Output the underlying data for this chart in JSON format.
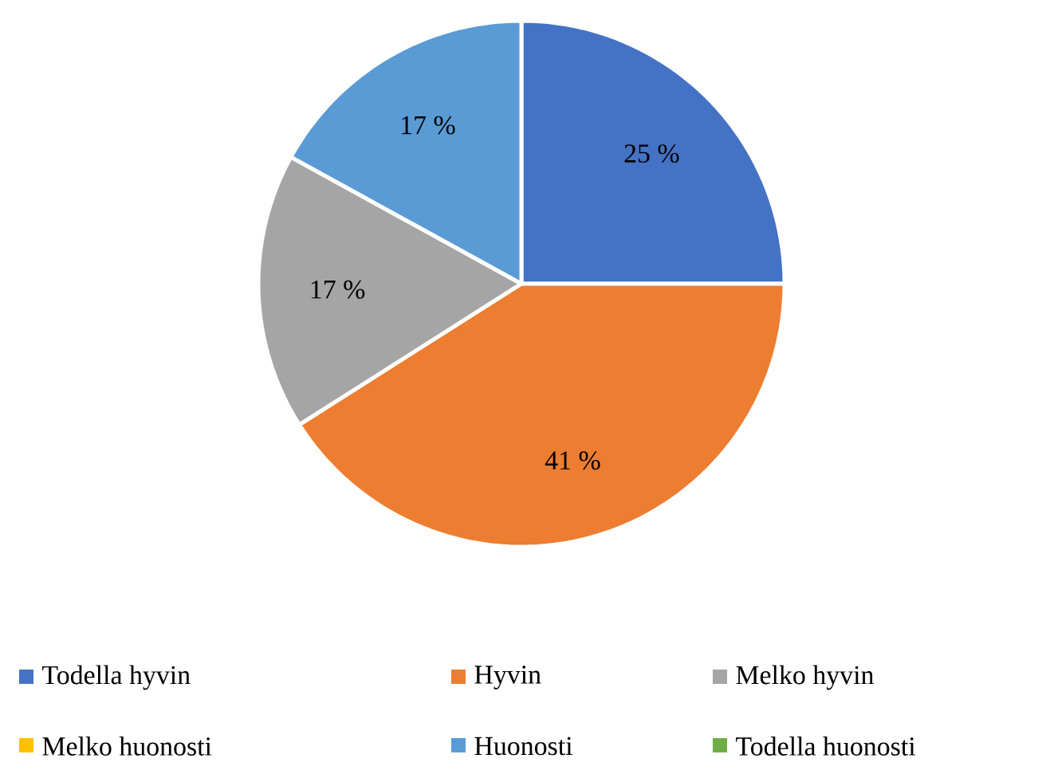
{
  "chart_data": {
    "type": "pie",
    "categories": [
      "Todella hyvin",
      "Hyvin",
      "Melko hyvin",
      "Melko huonosti",
      "Huonosti",
      "Todella huonosti"
    ],
    "values": [
      25,
      41,
      17,
      0,
      17,
      0
    ],
    "colors": [
      "#4472c4",
      "#ed7d31",
      "#a5a5a5",
      "#ffc000",
      "#5b9bd5",
      "#70ad47"
    ],
    "value_labels": [
      "25 %",
      "41 %",
      "17 %",
      null,
      "17 %",
      null
    ],
    "legend": "bottom"
  }
}
